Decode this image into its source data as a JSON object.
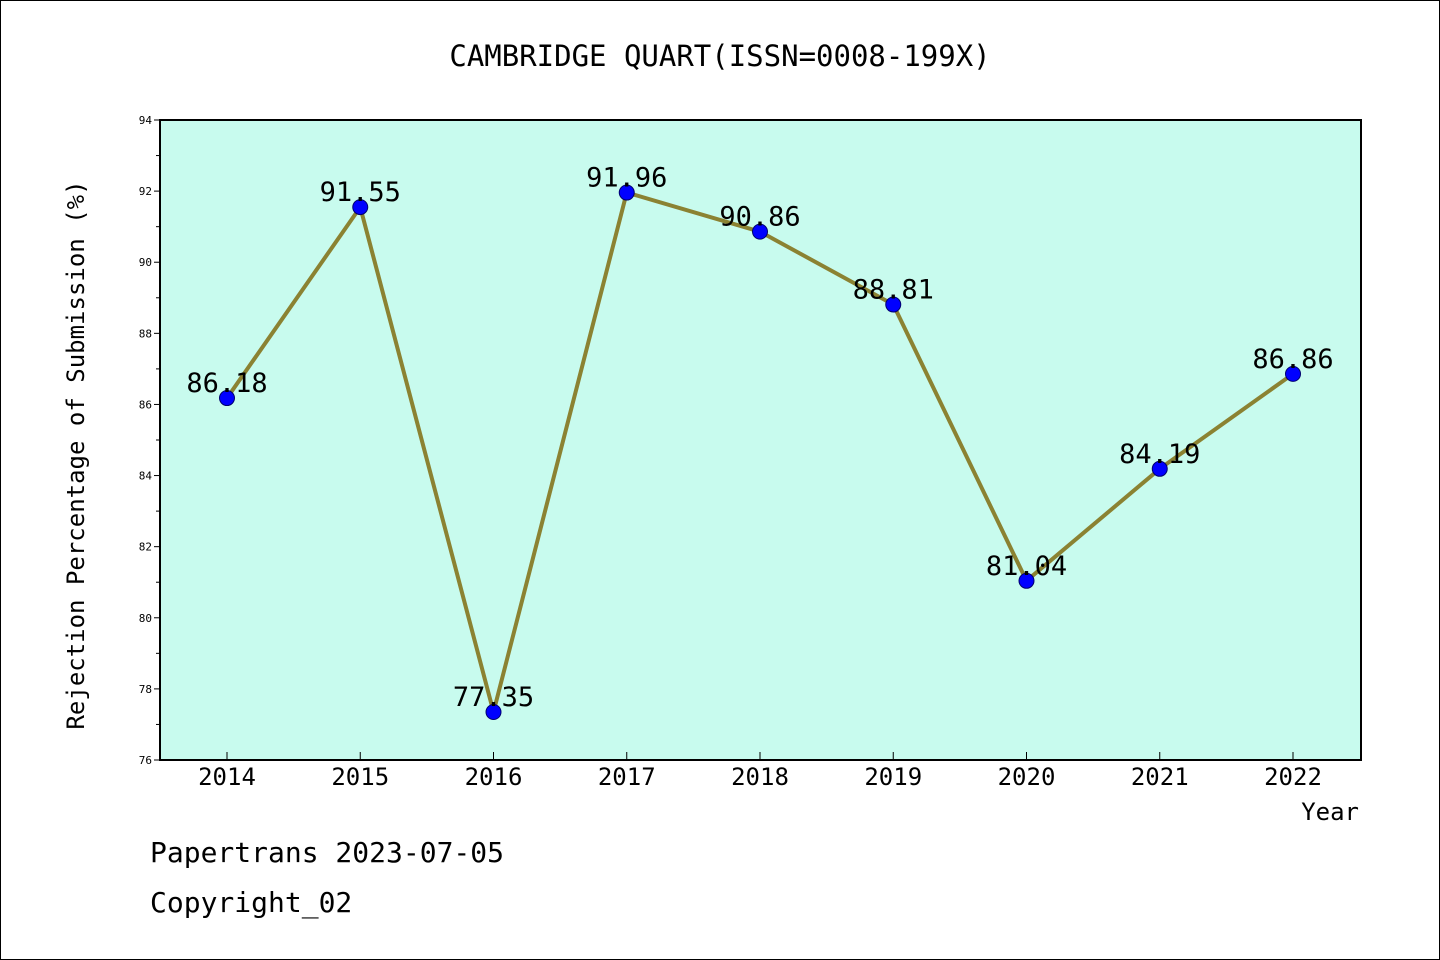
{
  "chart_data": {
    "type": "line",
    "title": "CAMBRIDGE QUART(ISSN=0008-199X)",
    "xlabel": "Year",
    "ylabel": "Rejection Percentage of Submission (%)",
    "categories": [
      "2014",
      "2015",
      "2016",
      "2017",
      "2018",
      "2019",
      "2020",
      "2021",
      "2022"
    ],
    "series": [
      {
        "values": [
          86.18,
          91.55,
          77.35,
          91.96,
          90.86,
          88.81,
          81.04,
          84.19,
          86.86
        ]
      }
    ],
    "data_labels": [
      "86.18",
      "91.55",
      "77.35",
      "91.96",
      "90.86",
      "88.81",
      "81.04",
      "84.19",
      "86.86"
    ],
    "ylim": [
      76,
      94
    ],
    "yticks": [
      76,
      78,
      80,
      82,
      84,
      86,
      88,
      90,
      92,
      94
    ],
    "grid": false,
    "colors": {
      "plot_background": "#c8fbee",
      "line": "#8b8232",
      "marker_fill": "#0000ff",
      "marker_edge": "#00006e"
    }
  },
  "footer": {
    "line1": "Papertrans 2023-07-05",
    "line2": "Copyright_02"
  }
}
